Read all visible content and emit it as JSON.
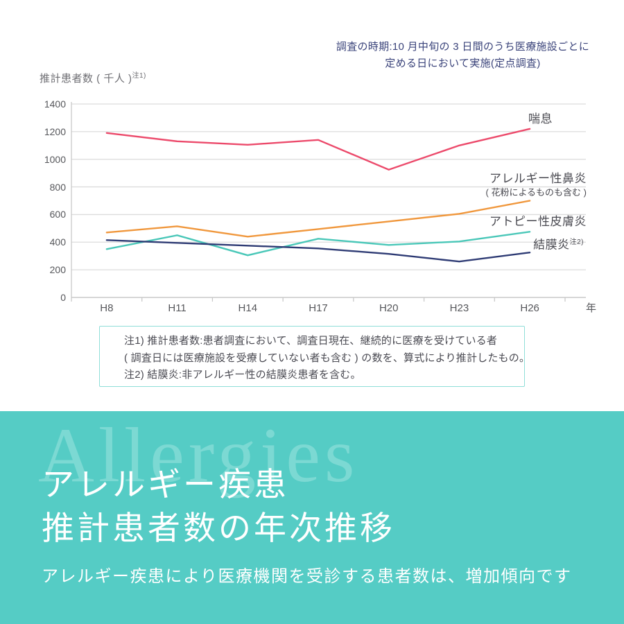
{
  "header_note": {
    "line1": "調査の時期:10 月中旬の 3 日間のうち医療施設ごとに",
    "line2": "定める日において実施(定点調査)"
  },
  "chart_data": {
    "type": "line",
    "title": "",
    "ylabel": "推計患者数 ( 千人 )",
    "ylabel_sup": "注1)",
    "x_axis_unit": "年",
    "categories": [
      "H8",
      "H11",
      "H14",
      "H17",
      "H20",
      "H23",
      "H26"
    ],
    "ylim": [
      0,
      1400
    ],
    "ytick_step": 200,
    "grid": true,
    "legend_position": "right-of-lines",
    "grid_color": "#DCDCDC",
    "axis_color": "#C9C9C9",
    "tick_label_color": "#55565A",
    "series": [
      {
        "name": "喘息",
        "color": "#EC4A6B",
        "values": [
          1190,
          1130,
          1105,
          1140,
          925,
          1100,
          1220
        ]
      },
      {
        "name": "アレルギー性鼻炎",
        "name_sub": "( 花粉によるものも含む )",
        "color": "#F0973C",
        "values": [
          470,
          515,
          440,
          495,
          550,
          605,
          700
        ]
      },
      {
        "name": "アトピー性皮膚炎",
        "color": "#49C7B8",
        "values": [
          350,
          450,
          305,
          425,
          380,
          405,
          475
        ]
      },
      {
        "name": "結膜炎",
        "name_sup": "注2)",
        "color": "#2E3B74",
        "values": [
          415,
          395,
          375,
          355,
          315,
          260,
          325
        ]
      }
    ]
  },
  "notes": {
    "line1": "注1) 推計患者数:患者調査において、調査日現在、継続的に医療を受けている者",
    "line2": "( 調査日には医療施設を受療していない者も含む ) の数を、算式により推計したもの。",
    "line3": "注2) 結膜炎:非アレルギー性の結膜炎患者を含む。"
  },
  "footer": {
    "watermark": "Allergies",
    "title_line1": "アレルギー疾患",
    "title_line2": "推計患者数の年次推移",
    "subtitle": "アレルギー疾患により医療機関を受診する患者数は、増加傾向です",
    "bg_color": "#55CCC5"
  }
}
